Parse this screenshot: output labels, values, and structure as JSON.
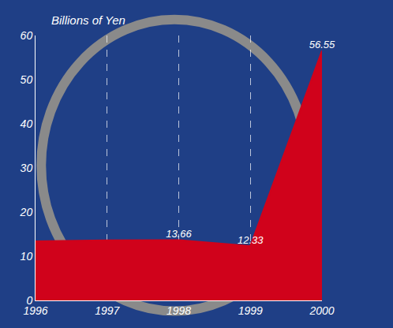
{
  "chart_data": {
    "type": "area",
    "y_label": "Billions of Yen",
    "categories": [
      "1996",
      "1997",
      "1998",
      "1999",
      "2000"
    ],
    "values": [
      13.4,
      13.6,
      13.66,
      12.33,
      56.55
    ],
    "value_labels": [
      null,
      null,
      "13.66",
      "12.33",
      "56.55"
    ],
    "data_labels": true,
    "color": "#d0021b",
    "ylim": [
      0,
      60
    ],
    "yticks": [
      0,
      10,
      20,
      30,
      40,
      50,
      60
    ],
    "grid": true
  }
}
